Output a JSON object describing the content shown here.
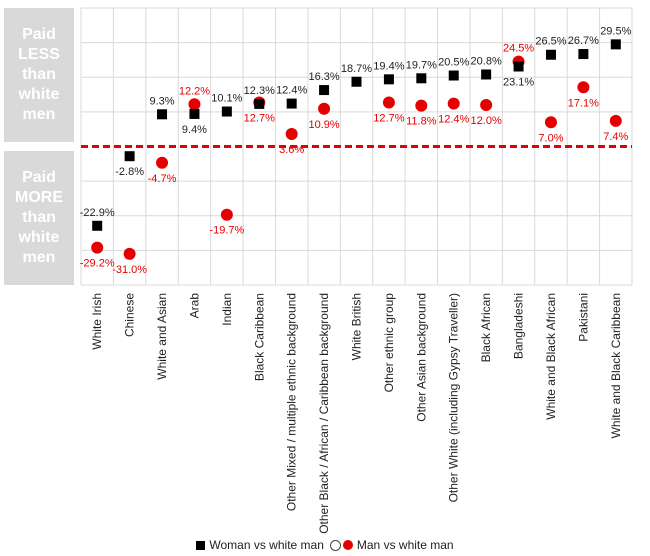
{
  "labels": {
    "paid_less": "Paid\nLESS\nthan\nwhite\nmen",
    "paid_more": "Paid\nMORE\nthan\nwhite\nmen"
  },
  "legend": {
    "women": "Woman vs white man",
    "men": "Man vs white man"
  },
  "colors": {
    "women": "#000000",
    "men": "#e50000",
    "zero_line": "#e50000",
    "grid": "#d9d9d9"
  },
  "chart_data": {
    "type": "scatter",
    "categories": [
      "White Irish",
      "Chinese",
      "White and Asian",
      "Arab",
      "Indian",
      "Black Caribbean",
      "Other Mixed / multiple ethnic background",
      "Other Black / African / Caribbean background",
      "White British",
      "Other ethnic group",
      "Other Asian background",
      "Other White (including Gypsy Traveller)",
      "Black African",
      "Bangladeshi",
      "White and Black African",
      "Pakistani",
      "White and Black Caribbean"
    ],
    "ylim": [
      -40,
      40
    ],
    "grid": true,
    "legend_position": "bottom",
    "series": [
      {
        "name": "Woman vs white man",
        "marker": "square",
        "values": [
          -22.9,
          -2.8,
          9.3,
          9.4,
          10.1,
          12.3,
          12.4,
          16.3,
          18.7,
          19.4,
          19.7,
          20.5,
          20.8,
          23.1,
          26.5,
          26.7,
          29.5
        ],
        "labels": [
          "-22.9%",
          "-2.8%",
          "9.3%",
          "9.4%",
          "10.1%",
          "12.3%",
          "12.4%",
          "16.3%",
          "18.7%",
          "19.4%",
          "19.7%",
          "20.5%",
          "20.8%",
          "23.1%",
          "26.5%",
          "26.7%",
          "29.5%"
        ]
      },
      {
        "name": "Man vs white man",
        "marker": "circle",
        "values": [
          -29.2,
          -31.0,
          -4.7,
          12.2,
          -19.7,
          12.7,
          3.6,
          10.9,
          null,
          12.7,
          11.8,
          12.4,
          12.0,
          24.5,
          7.0,
          17.1,
          7.4
        ],
        "labels": [
          "-29.2%",
          "-31.0%",
          "-4.7%",
          "12.2%",
          "-19.7%",
          "12.7%",
          "3.6%",
          "10.9%",
          "",
          "12.7%",
          "11.8%",
          "12.4%",
          "12.0%",
          "24.5%",
          "7.0%",
          "17.1%",
          "7.4%"
        ]
      }
    ]
  }
}
